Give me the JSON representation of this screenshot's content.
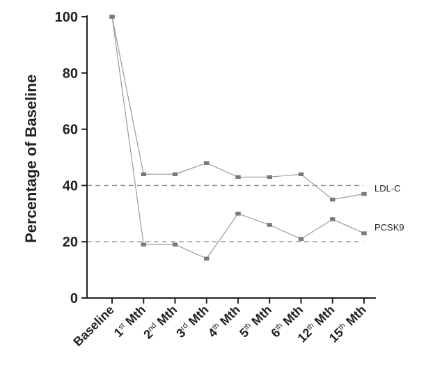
{
  "chart_data": {
    "type": "line",
    "title": "",
    "xlabel": "",
    "ylabel": "Percentage of Baseline",
    "ylim": [
      0,
      100
    ],
    "yticks": [
      0,
      20,
      40,
      60,
      80,
      100
    ],
    "grid": false,
    "categories": [
      {
        "main": "Baseline",
        "sup": "",
        "suffix": ""
      },
      {
        "main": "1",
        "sup": "st",
        "suffix": " Mth"
      },
      {
        "main": "2",
        "sup": "nd",
        "suffix": " Mth"
      },
      {
        "main": "3",
        "sup": "rd",
        "suffix": " Mth"
      },
      {
        "main": "4",
        "sup": "th",
        "suffix": " Mth"
      },
      {
        "main": "5",
        "sup": "th",
        "suffix": " Mth"
      },
      {
        "main": "6",
        "sup": "th",
        "suffix": " Mth"
      },
      {
        "main": "12",
        "sup": "th",
        "suffix": " Mth"
      },
      {
        "main": "15",
        "sup": "th",
        "suffix": " Mth"
      }
    ],
    "series": [
      {
        "name": "LDL-C",
        "values": [
          100,
          44,
          44,
          48,
          43,
          43,
          44,
          35,
          37
        ]
      },
      {
        "name": "PCSK9",
        "values": [
          100,
          19,
          19,
          14,
          30,
          26,
          21,
          28,
          23
        ]
      }
    ],
    "reference_lines": [
      40,
      20
    ],
    "colors": {
      "axis": "#222222",
      "series_line": "#9a9a9a",
      "marker": "#7a7a7a",
      "reference": "#8c8c8c",
      "text": "#222222"
    }
  }
}
